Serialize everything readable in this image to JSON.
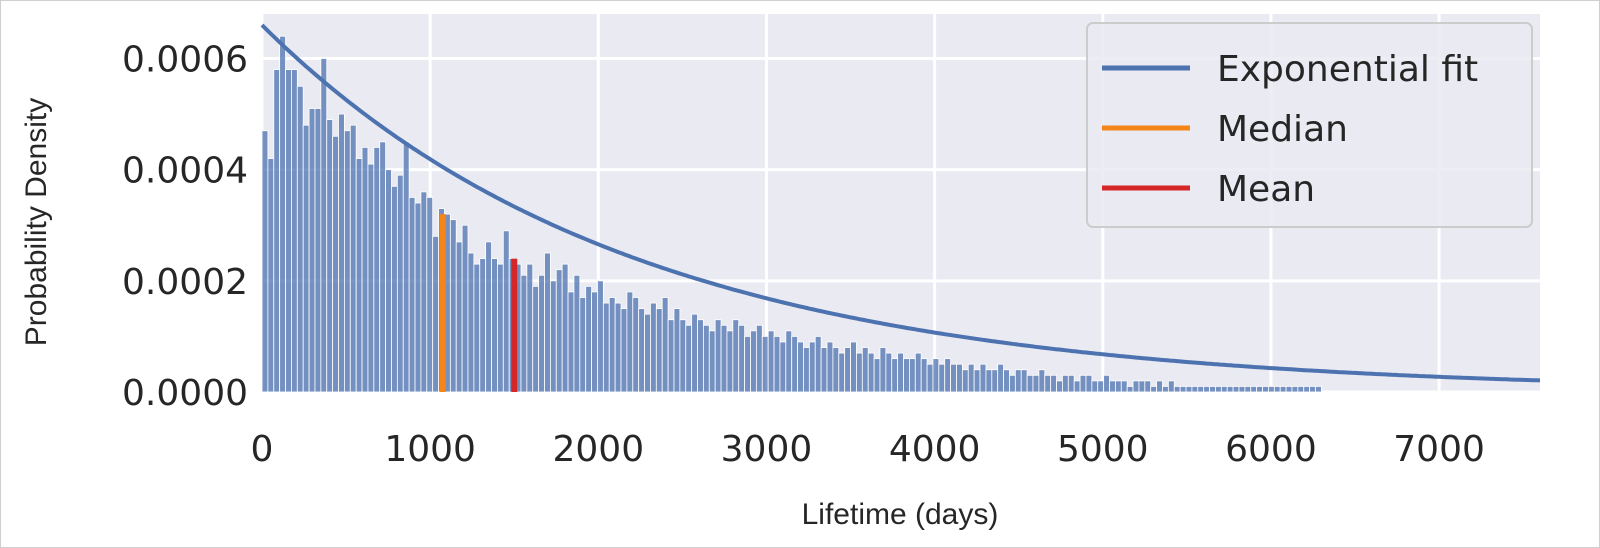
{
  "chart_data": {
    "type": "bar",
    "xlabel": "Lifetime (days)",
    "ylabel": "Probability Density",
    "xlim": [
      0,
      7600
    ],
    "ylim": [
      0,
      0.00068
    ],
    "x_ticks": [
      0,
      1000,
      2000,
      3000,
      4000,
      5000,
      6000,
      7000
    ],
    "x_tick_labels": [
      "0",
      "1000",
      "2000",
      "3000",
      "4000",
      "5000",
      "6000",
      "7000"
    ],
    "y_ticks": [
      0,
      0.0002,
      0.0004,
      0.0006
    ],
    "y_tick_labels": [
      "0.0000",
      "0.0002",
      "0.0004",
      "0.0006"
    ],
    "grid": true,
    "legend_position": "top-right",
    "histogram": {
      "bin_width": 35,
      "densities": [
        0.00047,
        0.00042,
        0.00058,
        0.00064,
        0.00058,
        0.00058,
        0.00055,
        0.00048,
        0.00051,
        0.00051,
        0.0006,
        0.00049,
        0.00046,
        0.0005,
        0.00047,
        0.00048,
        0.00042,
        0.00044,
        0.00041,
        0.00044,
        0.00045,
        0.0004,
        0.00037,
        0.00039,
        0.00045,
        0.00035,
        0.00034,
        0.00036,
        0.00035,
        0.00028,
        0.00033,
        0.00032,
        0.00031,
        0.00027,
        0.0003,
        0.00025,
        0.00023,
        0.00024,
        0.00027,
        0.00024,
        0.00023,
        0.00029,
        0.00024,
        0.00023,
        0.00021,
        0.00023,
        0.00019,
        0.00021,
        0.00025,
        0.0002,
        0.00022,
        0.00023,
        0.00018,
        0.00021,
        0.00017,
        0.00019,
        0.00018,
        0.0002,
        0.00016,
        0.00017,
        0.00016,
        0.00015,
        0.00018,
        0.00017,
        0.00015,
        0.00014,
        0.00016,
        0.00015,
        0.00017,
        0.00013,
        0.00015,
        0.00013,
        0.00012,
        0.00014,
        0.00013,
        0.00012,
        0.00011,
        0.00013,
        0.00012,
        0.00011,
        0.00013,
        0.00012,
        0.0001,
        0.00011,
        0.00012,
        0.0001,
        0.00011,
        0.0001,
        9e-05,
        0.00011,
        0.0001,
        9e-05,
        8e-05,
        9e-05,
        0.0001,
        8e-05,
        9e-05,
        8e-05,
        7e-05,
        8e-05,
        9e-05,
        7e-05,
        8e-05,
        7e-05,
        6e-05,
        8e-05,
        7e-05,
        6e-05,
        7e-05,
        6e-05,
        6e-05,
        7e-05,
        6e-05,
        5e-05,
        6e-05,
        5e-05,
        6e-05,
        5e-05,
        5e-05,
        4e-05,
        5e-05,
        4e-05,
        5e-05,
        4e-05,
        4e-05,
        5e-05,
        4e-05,
        3e-05,
        4e-05,
        4e-05,
        3e-05,
        3e-05,
        4e-05,
        3e-05,
        3e-05,
        2e-05,
        3e-05,
        3e-05,
        2e-05,
        3e-05,
        3e-05,
        2e-05,
        2e-05,
        3e-05,
        2e-05,
        2e-05,
        2e-05,
        1e-05,
        2e-05,
        2e-05,
        2e-05,
        1e-05,
        2e-05,
        1e-05,
        2e-05,
        1e-05,
        1e-05,
        1e-05,
        1e-05,
        1e-05,
        1e-05,
        1e-05,
        1e-05,
        1e-05,
        1e-05,
        1e-05,
        1e-05,
        1e-05,
        1e-05,
        1e-05,
        1e-05,
        1e-05,
        1e-05,
        1e-05,
        1e-05,
        1e-05,
        1e-05,
        1e-05,
        1e-05,
        1e-05
      ]
    },
    "exponential_fit": {
      "name": "Exponential fit",
      "rate": 0.000455,
      "amplitude": 0.00066,
      "color": "#4c72b0"
    },
    "median": {
      "name": "Median",
      "x": 1075,
      "y": 0.00032,
      "color": "#f58518"
    },
    "mean": {
      "name": "Mean",
      "x": 1500,
      "y": 0.00024,
      "color": "#d62728"
    },
    "colors": {
      "background": "#eaeaf2",
      "bars": "#4c72b0",
      "grid": "#ffffff"
    }
  }
}
